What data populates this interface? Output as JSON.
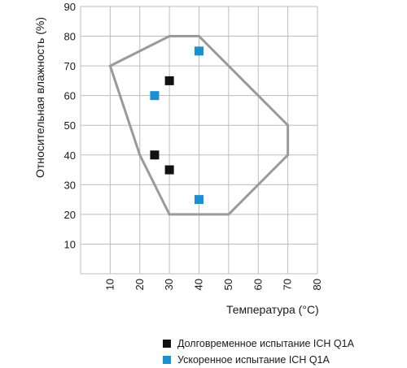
{
  "chart_data": {
    "type": "scatter",
    "xlabel": "Температура (°C)",
    "ylabel": "Относительная влажность (%)",
    "xlim": [
      0,
      80
    ],
    "ylim": [
      0,
      90
    ],
    "x_ticks": [
      10,
      20,
      30,
      40,
      50,
      60,
      70,
      80
    ],
    "y_ticks": [
      10,
      20,
      30,
      40,
      50,
      60,
      70,
      80,
      90
    ],
    "grid": true,
    "region": {
      "color": "#9a9a9a",
      "points": [
        [
          10,
          70
        ],
        [
          30,
          80
        ],
        [
          40,
          80
        ],
        [
          70,
          50
        ],
        [
          70,
          40
        ],
        [
          50,
          20
        ],
        [
          30,
          20
        ],
        [
          20,
          40
        ]
      ]
    },
    "series": [
      {
        "name": "Долговременное испытание ICH Q1A",
        "color": "#111111",
        "points": [
          [
            25,
            40
          ],
          [
            30,
            35
          ],
          [
            30,
            65
          ]
        ]
      },
      {
        "name": "Ускоренное испытание ICH Q1A",
        "color": "#1b8fd2",
        "points": [
          [
            25,
            60
          ],
          [
            40,
            75
          ],
          [
            40,
            25
          ]
        ]
      }
    ],
    "legend_position": "bottom"
  }
}
